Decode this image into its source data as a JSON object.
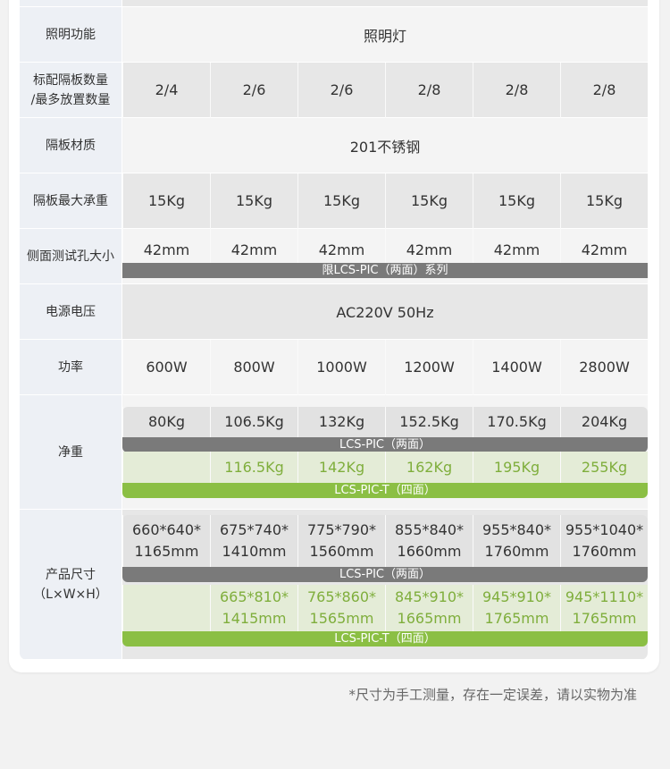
{
  "rows": [
    {
      "label": "照明功能",
      "span": "照明灯"
    },
    {
      "label": "标配隔板数量\n/最多放置数量",
      "values": [
        "2/4",
        "2/6",
        "2/6",
        "2/8",
        "2/8",
        "2/8"
      ]
    },
    {
      "label": "隔板材质",
      "span": "201不锈钢"
    },
    {
      "label": "隔板最大承重",
      "values": [
        "15Kg",
        "15Kg",
        "15Kg",
        "15Kg",
        "15Kg",
        "15Kg"
      ]
    },
    {
      "label": "侧面测试孔大小",
      "values": [
        "42mm",
        "42mm",
        "42mm",
        "42mm",
        "42mm",
        "42mm"
      ],
      "bar": "限LCS-PIC（两面）系列"
    },
    {
      "label": "电源电压",
      "span": "AC220V 50Hz"
    },
    {
      "label": "功率",
      "values": [
        "600W",
        "800W",
        "1000W",
        "1200W",
        "1400W",
        "2800W"
      ]
    }
  ],
  "weight": {
    "label": "净重",
    "pic": [
      "80Kg",
      "106.5Kg",
      "132Kg",
      "152.5Kg",
      "170.5Kg",
      "204Kg"
    ],
    "pic_bar": "LCS-PIC（两面）",
    "pict": [
      "",
      "116.5Kg",
      "142Kg",
      "162Kg",
      "195Kg",
      "255Kg"
    ],
    "pict_bar": "LCS-PIC-T（四面）"
  },
  "size": {
    "label": "产品尺寸\n（L×W×H）",
    "pic": [
      "660*640*\n1165mm",
      "675*740*\n1410mm",
      "775*790*\n1560mm",
      "855*840*\n1660mm",
      "955*840*\n1760mm",
      "955*1040*\n1760mm"
    ],
    "pic_bar": "LCS-PIC（两面）",
    "pict": [
      "",
      "665*810*\n1415mm",
      "765*860*\n1565mm",
      "845*910*\n1665mm",
      "945*910*\n1765mm",
      "945*1110*\n1765mm"
    ],
    "pict_bar": "LCS-PIC-T（四面）"
  },
  "note": "*尺寸为手工测量，存在一定误差，请以实物为准",
  "colors": {
    "gray_bar": "#7a7a7a",
    "green_bar": "#8bbf44",
    "green_text": "#7fae3c"
  }
}
